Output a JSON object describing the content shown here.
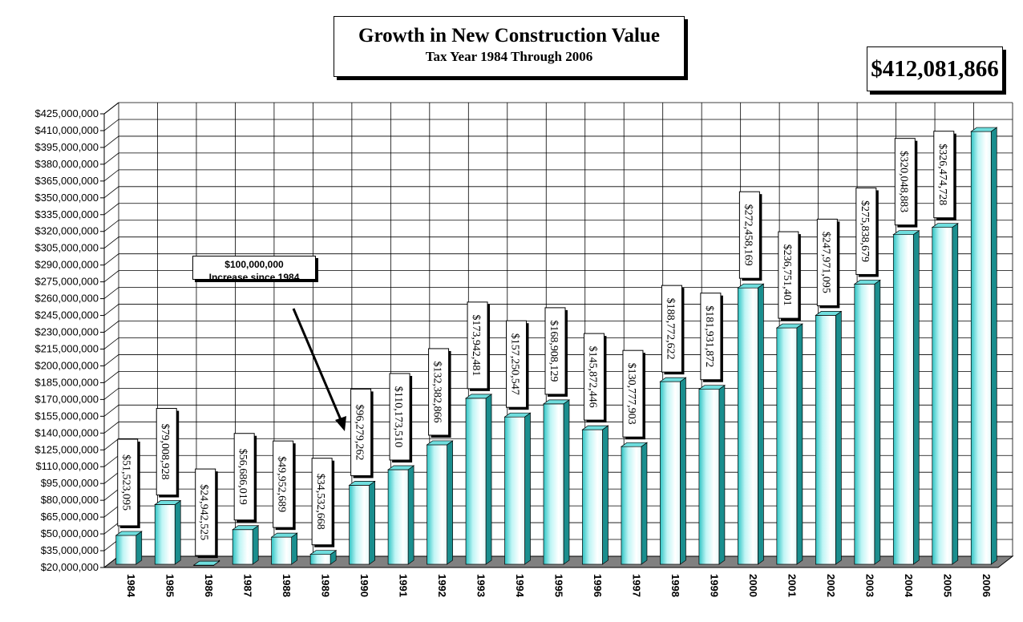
{
  "chart_data": {
    "type": "bar",
    "title": "Growth in New Construction Value",
    "subtitle": "Tax Year 1984 Through 2006",
    "total_label": "$412,081,866",
    "callout": {
      "line1": "$100,000,000",
      "line2": "Increase since 1984"
    },
    "categories": [
      "1984",
      "1985",
      "1986",
      "1987",
      "1988",
      "1989",
      "1990",
      "1991",
      "1992",
      "1993",
      "1994",
      "1995",
      "1996",
      "1997",
      "1998",
      "1999",
      "2000",
      "2001",
      "2002",
      "2003",
      "2004",
      "2005",
      "2006"
    ],
    "values": [
      51523095,
      79008928,
      24942525,
      56686019,
      49952689,
      34532668,
      96279262,
      110173510,
      132382866,
      173942481,
      157250547,
      168908129,
      145872446,
      130777903,
      188772622,
      181931872,
      272458169,
      236751401,
      247971095,
      275838679,
      320048883,
      326474728,
      412081866
    ],
    "data_labels": [
      "$51,523,095",
      "$79,008,928",
      "$24,942,525",
      "$56,686,019",
      "$49,952,689",
      "$34,532,668",
      "$96,279,262",
      "$110,173,510",
      "$132,382,866",
      "$173,942,481",
      "$157,250,547",
      "$168,908,129",
      "$145,872,446",
      "$130,777,903",
      "$188,772,622",
      "$181,931,872",
      "$272,458,169",
      "$236,751,401",
      "$247,971,095",
      "$275,838,679",
      "$320,048,883",
      "$326,474,728",
      ""
    ],
    "ylim": [
      20000000,
      425000000
    ],
    "ytick_step": 15000000,
    "xlabel": "",
    "ylabel": "",
    "grid": true,
    "legend": "none",
    "colors": {
      "bar_light": "#ffffff",
      "bar_mid": "#aef4f4",
      "bar_dark": "#30c8c8",
      "bar_side": "#1a8e8e",
      "floor": "#808080",
      "wall_back": "#ffffff"
    }
  }
}
